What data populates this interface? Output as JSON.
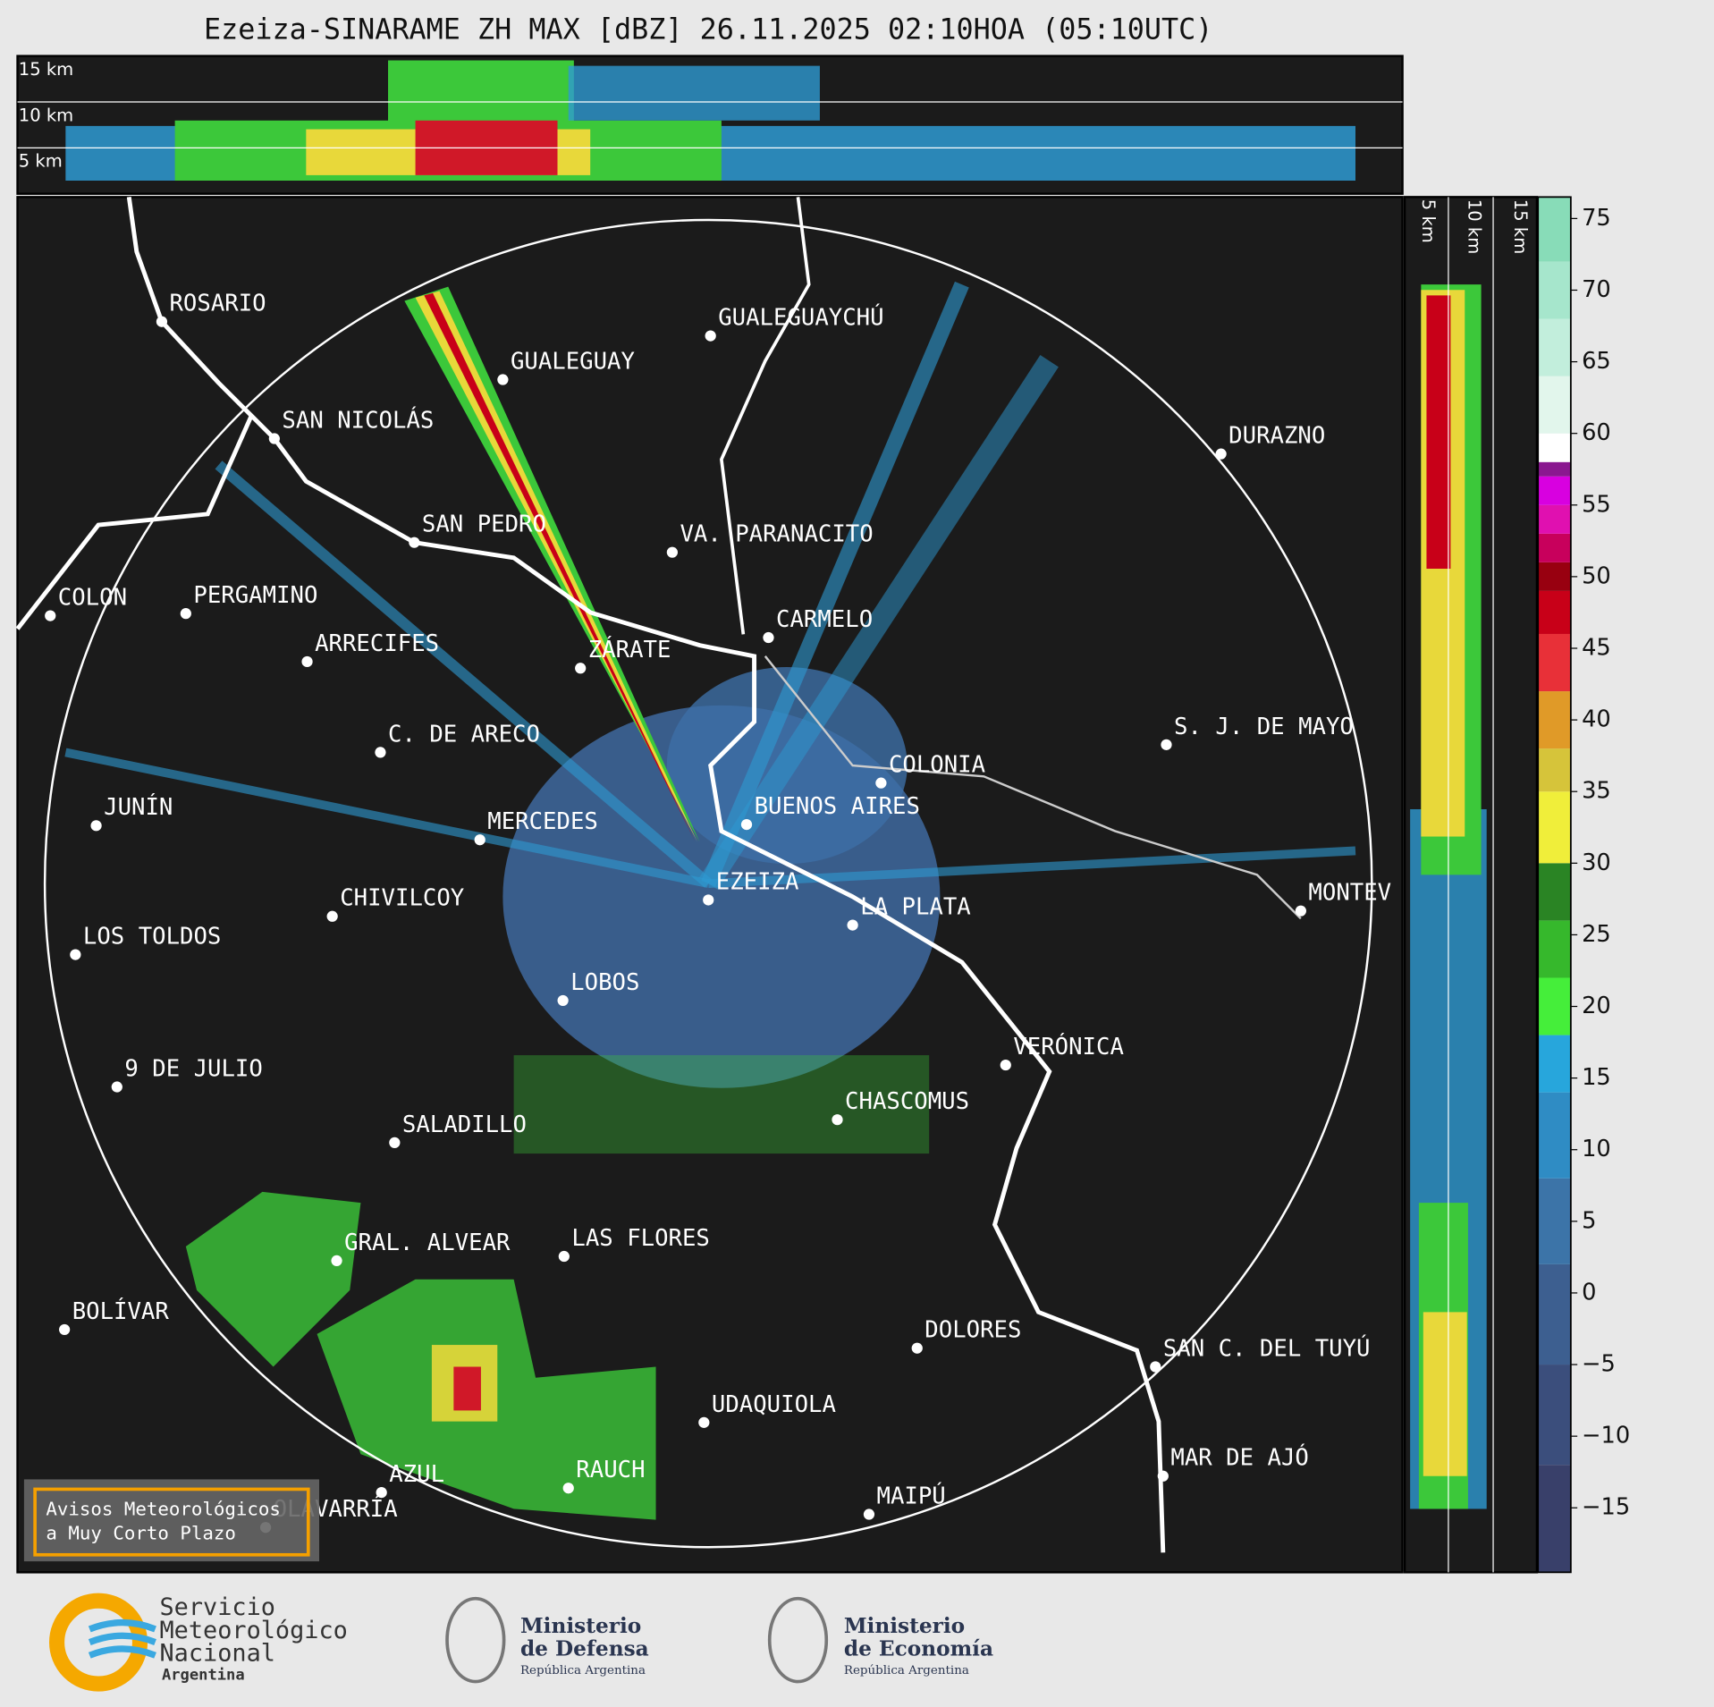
{
  "title": "Ezeiza-SINARAME ZH MAX [dBZ] 26.11.2025 02:10HOA (05:10UTC)",
  "top_panel": {
    "height_labels": [
      "15 km",
      "10 km",
      "5 km"
    ]
  },
  "side_panel": {
    "height_labels": [
      "5 km",
      "10 km",
      "15 km"
    ]
  },
  "colorbar": {
    "ylim": [
      -19.5,
      76.5
    ],
    "yticks": [
      {
        "value": -15,
        "label": "−15"
      },
      {
        "value": -10,
        "label": "−10"
      },
      {
        "value": -5,
        "label": "−5"
      },
      0,
      5,
      10,
      15,
      20,
      25,
      30,
      35,
      40,
      45,
      50,
      55,
      60,
      65,
      70,
      75
    ],
    "bands": [
      {
        "from": -19.5,
        "color": "#39406a"
      },
      {
        "from": -12,
        "color": "#3b4e7c"
      },
      {
        "from": -5,
        "color": "#3d5f90"
      },
      {
        "from": 2,
        "color": "#3c74a8"
      },
      {
        "from": 8,
        "color": "#2f8cc4"
      },
      {
        "from": 14,
        "color": "#27a6dc"
      },
      {
        "from": 18,
        "color": "#45ee3a"
      },
      {
        "from": 22,
        "color": "#36b82c"
      },
      {
        "from": 26,
        "color": "#2a8424"
      },
      {
        "from": 30,
        "color": "#f0ee3a"
      },
      {
        "from": 35,
        "color": "#d6c43a"
      },
      {
        "from": 38,
        "color": "#e09a28"
      },
      {
        "from": 42,
        "color": "#e83038"
      },
      {
        "from": 46,
        "color": "#c80018"
      },
      {
        "from": 49,
        "color": "#980010"
      },
      {
        "from": 51,
        "color": "#c8005c"
      },
      {
        "from": 53,
        "color": "#e010b0"
      },
      {
        "from": 55,
        "color": "#d800e0"
      },
      {
        "from": 57,
        "color": "#8a1890"
      },
      {
        "from": 58,
        "color": "#ffffff"
      },
      {
        "from": 60,
        "color": "#e2f6ec"
      },
      {
        "from": 64,
        "color": "#c2eedc"
      },
      {
        "from": 68,
        "color": "#a6e6cc"
      },
      {
        "from": 72,
        "color": "#88dcb8"
      }
    ]
  },
  "cities": [
    "ROSARIO",
    "GUALEGUAYCHÚ",
    "GUALEGUAY",
    "SAN NICOLÁS",
    "DURAZNO",
    "SAN PEDRO",
    "VA. PARANACITO",
    "COLON",
    "PERGAMINO",
    "CARMELO",
    "ARRECIFES",
    "ZÁRATE",
    "S. J. DE MAYO",
    "C. DE ARECO",
    "COLONIA",
    "BUENOS AIRES",
    "JUNÍN",
    "MERCEDES",
    "EZEIZA",
    "MONTEV",
    "CHIVILCOY",
    "LA PLATA",
    "LOS TOLDOS",
    "LOBOS",
    "VERÓNICA",
    "9 DE JULIO",
    "CHASCOMUS",
    "SALADILLO",
    "LAS FLORES",
    "GRAL. ALVEAR",
    "BOLÍVAR",
    "DOLORES",
    "SAN C. DEL TUYÚ",
    "UDAQUIOLA",
    "MAR DE AJÓ",
    "RAUCH",
    "AZUL",
    "OLAVARRÍA",
    "MAIPÚ"
  ],
  "notice": [
    "Avisos Meteorológicos",
    "a Muy Corto Plazo"
  ],
  "logos": {
    "smn": [
      "Servicio",
      "Meteorológico",
      "Nacional",
      "Argentina"
    ],
    "defensa": [
      "Ministerio",
      "de Defensa",
      "República Argentina"
    ],
    "economia": [
      "Ministerio",
      "de Economía",
      "República Argentina"
    ]
  }
}
